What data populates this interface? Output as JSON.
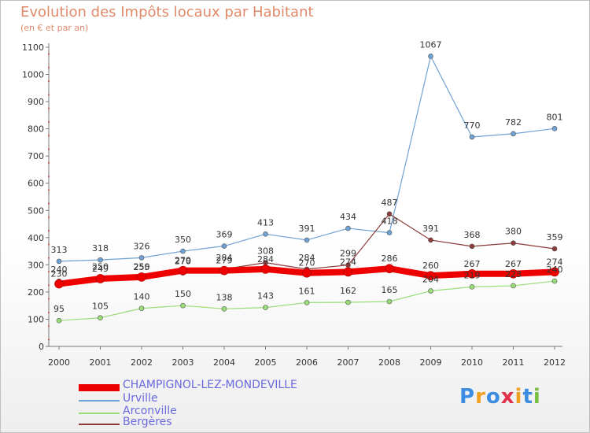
{
  "header": {
    "title": "Evolution des Impôts locaux par Habitant",
    "subtitle": "(en € et par an)"
  },
  "logo": {
    "text": "Proxiti"
  },
  "chart_data": {
    "type": "line",
    "title": "Evolution des Impôts locaux par Habitant",
    "subtitle": "(en € et par an)",
    "x": [
      "2000",
      "2001",
      "2002",
      "2003",
      "2004",
      "2005",
      "2006",
      "2007",
      "2008",
      "2009",
      "2010",
      "2011",
      "2012"
    ],
    "ylim": [
      0,
      1100
    ],
    "yticks": [
      0,
      100,
      200,
      300,
      400,
      500,
      600,
      700,
      800,
      900,
      1000,
      1100
    ],
    "grid": false,
    "legend_position": "bottom-left",
    "series": [
      {
        "name": "CHAMPIGNOL-LEZ-MONDEVILLE",
        "color": "#ee0000",
        "values": [
          230,
          249,
          255,
          279,
          279,
          284,
          270,
          274,
          286,
          260,
          267,
          267,
          274
        ],
        "labels": [
          "230",
          "249",
          "255",
          "279",
          "279",
          "284",
          "270",
          "274",
          "286",
          "260",
          "267",
          "267",
          "274"
        ]
      },
      {
        "name": "Urville",
        "color": "#6fa2d4",
        "values": [
          313,
          318,
          326,
          350,
          369,
          413,
          391,
          434,
          418,
          1067,
          770,
          782,
          801
        ],
        "labels": [
          "313",
          "318",
          "326",
          "350",
          "369",
          "413",
          "391",
          "434",
          "418",
          "1067",
          "770",
          "782",
          "801"
        ]
      },
      {
        "name": "Arconville",
        "color": "#99dd77",
        "values": [
          95,
          105,
          140,
          150,
          138,
          143,
          161,
          162,
          165,
          204,
          219,
          223,
          240
        ],
        "labels": [
          "95",
          "105",
          "140",
          "150",
          "138",
          "143",
          "161",
          "162",
          "165",
          "204",
          "219",
          "223",
          "240"
        ]
      },
      {
        "name": "Bergères",
        "color": "#8c3a3a",
        "values": [
          240,
          250,
          250,
          270,
          284,
          308,
          284,
          299,
          487,
          391,
          368,
          380,
          359
        ],
        "labels": [
          "240",
          "250",
          "250",
          "270",
          "284",
          "308",
          "284",
          "299",
          "487",
          "391",
          "368",
          "380",
          "359"
        ]
      }
    ]
  }
}
